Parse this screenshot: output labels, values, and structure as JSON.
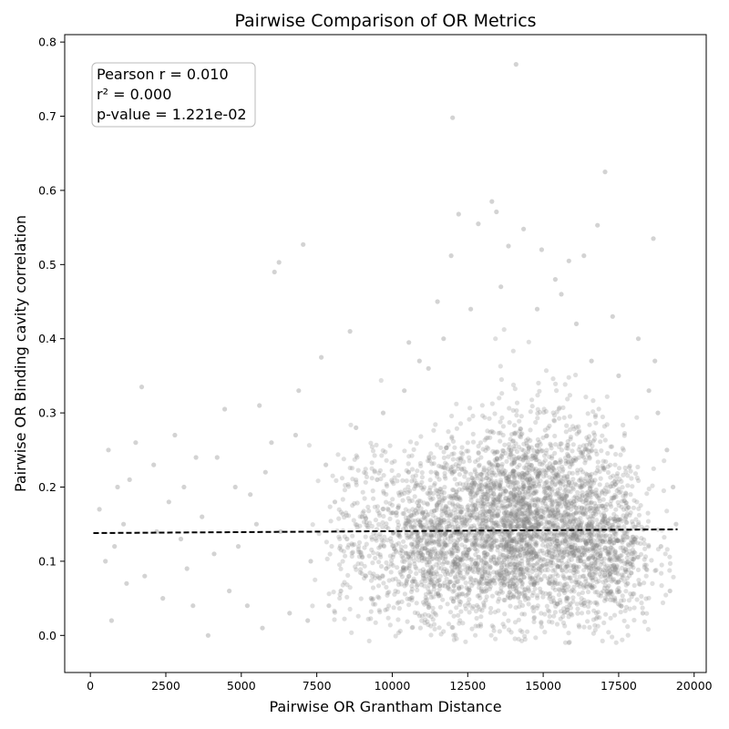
{
  "chart_data": {
    "type": "scatter",
    "title": "Pairwise Comparison of OR Metrics",
    "xlabel": "Pairwise OR Grantham Distance",
    "ylabel": "Pairwise OR Binding cavity correlation",
    "xlim": [
      -850,
      20400
    ],
    "ylim": [
      -0.05,
      0.81
    ],
    "xticks": [
      0,
      2500,
      5000,
      7500,
      10000,
      12500,
      15000,
      17500,
      20000
    ],
    "yticks": [
      0.0,
      0.1,
      0.2,
      0.3,
      0.4,
      0.5,
      0.6,
      0.7,
      0.8
    ],
    "xtick_labels": [
      "0",
      "2500",
      "5000",
      "7500",
      "10000",
      "12500",
      "15000",
      "17500",
      "20000"
    ],
    "ytick_labels": [
      "0.0",
      "0.1",
      "0.2",
      "0.3",
      "0.4",
      "0.5",
      "0.6",
      "0.7",
      "0.8"
    ],
    "point_color": "#808080",
    "point_alpha": 0.25,
    "grid": false,
    "fit_line": {
      "style": "dashed",
      "color": "#000000",
      "x": [
        100,
        19450
      ],
      "y": [
        0.138,
        0.143
      ]
    },
    "stats_box": {
      "pearson": "Pearson r = 0.010",
      "r2": "r² = 0.000",
      "pvalue": "p-value = 1.221e-02",
      "position": "top-left"
    },
    "points": [
      [
        14100,
        0.77
      ],
      [
        12000,
        0.698
      ],
      [
        17050,
        0.625
      ],
      [
        7050,
        0.527
      ],
      [
        6100,
        0.49
      ],
      [
        6250,
        0.503
      ],
      [
        18650,
        0.535
      ],
      [
        13300,
        0.585
      ],
      [
        13450,
        0.571
      ],
      [
        12200,
        0.568
      ],
      [
        16800,
        0.553
      ],
      [
        12850,
        0.555
      ],
      [
        16350,
        0.512
      ],
      [
        14950,
        0.52
      ],
      [
        15850,
        0.505
      ],
      [
        11950,
        0.512
      ],
      [
        14350,
        0.548
      ],
      [
        13850,
        0.525
      ],
      [
        11500,
        0.45
      ],
      [
        15400,
        0.48
      ],
      [
        17300,
        0.43
      ],
      [
        18150,
        0.4
      ],
      [
        8600,
        0.41
      ],
      [
        7650,
        0.375
      ],
      [
        10550,
        0.395
      ],
      [
        1700,
        0.335
      ],
      [
        5600,
        0.31
      ],
      [
        6900,
        0.33
      ],
      [
        4450,
        0.305
      ],
      [
        18700,
        0.37
      ],
      [
        1100,
        0.15
      ],
      [
        600,
        0.25
      ],
      [
        900,
        0.2
      ],
      [
        1500,
        0.26
      ],
      [
        2100,
        0.23
      ],
      [
        2600,
        0.18
      ],
      [
        3100,
        0.2
      ],
      [
        3700,
        0.16
      ],
      [
        4200,
        0.24
      ],
      [
        4900,
        0.12
      ],
      [
        5300,
        0.19
      ],
      [
        5800,
        0.22
      ],
      [
        6300,
        0.14
      ],
      [
        6800,
        0.27
      ],
      [
        7300,
        0.1
      ],
      [
        7800,
        0.23
      ],
      [
        8300,
        0.06
      ],
      [
        8800,
        0.28
      ],
      [
        9300,
        0.05
      ],
      [
        9700,
        0.3
      ],
      [
        1800,
        0.08
      ],
      [
        2400,
        0.05
      ],
      [
        3200,
        0.09
      ],
      [
        3900,
        0.0
      ],
      [
        4600,
        0.06
      ],
      [
        5200,
        0.04
      ],
      [
        5700,
        0.01
      ],
      [
        6600,
        0.03
      ],
      [
        7200,
        0.02
      ],
      [
        7900,
        0.04
      ],
      [
        300,
        0.17
      ],
      [
        500,
        0.1
      ],
      [
        800,
        0.12
      ],
      [
        1300,
        0.21
      ],
      [
        2800,
        0.27
      ],
      [
        3500,
        0.24
      ],
      [
        4100,
        0.11
      ],
      [
        4800,
        0.2
      ],
      [
        5500,
        0.15
      ],
      [
        6000,
        0.26
      ],
      [
        8100,
        0.18
      ],
      [
        8500,
        0.13
      ],
      [
        9000,
        0.16
      ],
      [
        9500,
        0.21
      ],
      [
        9800,
        0.09
      ],
      [
        700,
        0.02
      ],
      [
        1200,
        0.07
      ],
      [
        2200,
        0.14
      ],
      [
        3000,
        0.13
      ],
      [
        3400,
        0.04
      ],
      [
        17800,
        0.07
      ],
      [
        18300,
        0.03
      ],
      [
        18900,
        0.12
      ],
      [
        19200,
        0.06
      ],
      [
        19400,
        0.15
      ],
      [
        19300,
        0.2
      ],
      [
        19100,
        0.25
      ],
      [
        18800,
        0.3
      ],
      [
        18500,
        0.33
      ],
      [
        11200,
        0.36
      ],
      [
        10400,
        0.33
      ],
      [
        10900,
        0.37
      ],
      [
        11700,
        0.4
      ],
      [
        16600,
        0.37
      ],
      [
        17500,
        0.35
      ],
      [
        13600,
        0.47
      ],
      [
        14800,
        0.44
      ],
      [
        15600,
        0.46
      ],
      [
        12600,
        0.44
      ],
      [
        16100,
        0.42
      ]
    ],
    "density_clusters": [
      {
        "cx": 14200,
        "cy": 0.15,
        "sx": 1400,
        "sy": 0.065,
        "n": 1500
      },
      {
        "cx": 13000,
        "cy": 0.13,
        "sx": 1700,
        "sy": 0.06,
        "n": 900
      },
      {
        "cx": 17000,
        "cy": 0.12,
        "sx": 850,
        "sy": 0.055,
        "n": 800
      },
      {
        "cx": 11300,
        "cy": 0.12,
        "sx": 700,
        "sy": 0.06,
        "n": 500
      },
      {
        "cx": 9300,
        "cy": 0.13,
        "sx": 800,
        "sy": 0.065,
        "n": 250
      },
      {
        "cx": 15200,
        "cy": 0.2,
        "sx": 1200,
        "sy": 0.07,
        "n": 400
      }
    ]
  }
}
